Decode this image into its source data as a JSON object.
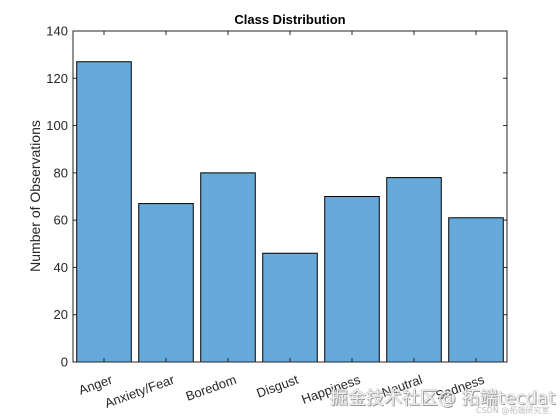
{
  "chart_data": {
    "type": "bar",
    "title": "Class Distribution",
    "xlabel": "",
    "ylabel": "Number of Observations",
    "categories": [
      "Anger",
      "Anxiety/Fear",
      "Boredom",
      "Disgust",
      "Happiness",
      "Neutral",
      "Sadness"
    ],
    "values": [
      127,
      67,
      80,
      46,
      70,
      78,
      61
    ],
    "ylim": [
      0,
      140
    ],
    "yticks": [
      0,
      20,
      40,
      60,
      80,
      100,
      120,
      140
    ],
    "grid": false,
    "legend": false,
    "colors": {
      "bar_fill": "#65aada",
      "bar_edge": "#000000",
      "axis": "#262626",
      "text": "#262626"
    }
  },
  "watermark": {
    "main": "掘金技术社区@ 拓端tecdat",
    "sub": "CSDN @拓端研究室"
  }
}
